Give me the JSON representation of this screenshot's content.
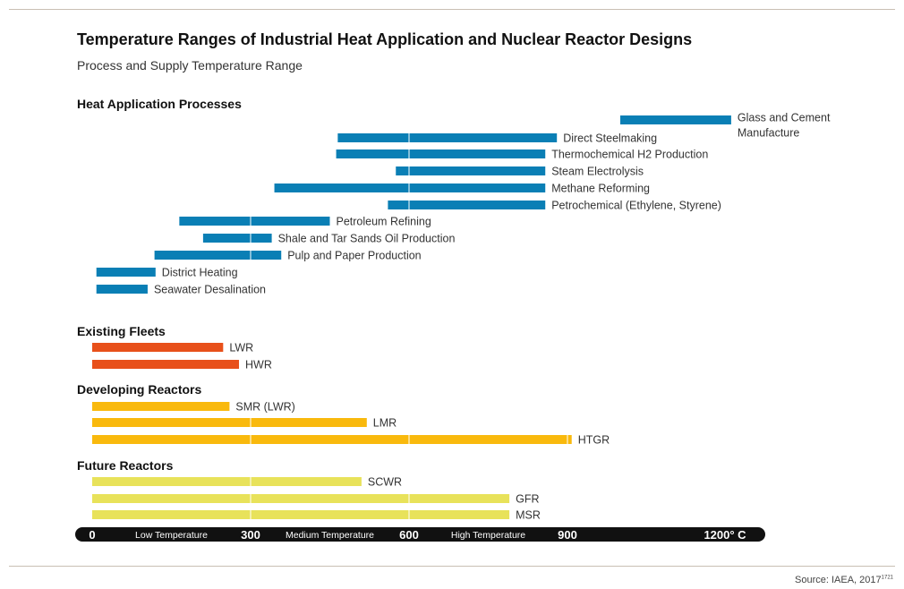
{
  "title": "Temperature Ranges of Industrial Heat Application and Nuclear Reactor Designs",
  "subtitle": "Process and Supply Temperature Range",
  "source": "Source: IAEA, 2017",
  "source_ref": "1721",
  "colors": {
    "heat": "#0a7fb5",
    "existing": "#e8501a",
    "developing": "#f9b90d",
    "future": "#e8e25a",
    "axis": "#111111",
    "divider": "#ffffff"
  },
  "chart_data": {
    "type": "bar",
    "orientation": "horizontal",
    "unit": "°C",
    "xlim": [
      0,
      1200
    ],
    "axis": {
      "ticks": [
        {
          "value": 0,
          "label": "0"
        },
        {
          "value": 300,
          "label": "300"
        },
        {
          "value": 600,
          "label": "600"
        },
        {
          "value": 900,
          "label": "900"
        }
      ],
      "end_label": "1200° C",
      "bands": [
        {
          "label": "Low Temperature",
          "start": 0,
          "end": 300
        },
        {
          "label": "Medium Temperature",
          "start": 300,
          "end": 600
        },
        {
          "label": "High Temperature",
          "start": 600,
          "end": 900
        }
      ]
    },
    "groups": [
      {
        "name": "Heat Application Processes",
        "color_key": "heat",
        "bars": [
          {
            "label": "Glass and Cement Manufacture",
            "label_lines": [
              "Glass and Cement",
              "Manufacture"
            ],
            "start": 1000,
            "end": 1210
          },
          {
            "label": "Direct Steelmaking",
            "start": 465,
            "end": 880
          },
          {
            "label": "Thermochemical H2 Production",
            "start": 462,
            "end": 858
          },
          {
            "label": "Steam Electrolysis",
            "start": 575,
            "end": 858
          },
          {
            "label": "Methane Reforming",
            "start": 345,
            "end": 858
          },
          {
            "label": "Petrochemical (Ethylene, Styrene)",
            "start": 560,
            "end": 858
          },
          {
            "label": "Petroleum Refining",
            "start": 165,
            "end": 450
          },
          {
            "label": "Shale and Tar Sands Oil Production",
            "start": 210,
            "end": 340
          },
          {
            "label": "Pulp and Paper Production",
            "start": 118,
            "end": 358
          },
          {
            "label": "District Heating",
            "start": 8,
            "end": 120
          },
          {
            "label": "Seawater Desalination",
            "start": 8,
            "end": 105
          }
        ]
      },
      {
        "name": "Existing Fleets",
        "color_key": "existing",
        "bars": [
          {
            "label": "LWR",
            "start": 0,
            "end": 248
          },
          {
            "label": "HWR",
            "start": 0,
            "end": 278
          }
        ]
      },
      {
        "name": "Developing Reactors",
        "color_key": "developing",
        "bars": [
          {
            "label": "SMR (LWR)",
            "start": 0,
            "end": 260
          },
          {
            "label": "LMR",
            "start": 0,
            "end": 520
          },
          {
            "label": "HTGR",
            "start": 0,
            "end": 908
          }
        ]
      },
      {
        "name": "Future Reactors",
        "color_key": "future",
        "bars": [
          {
            "label": "SCWR",
            "start": 0,
            "end": 510
          },
          {
            "label": "GFR",
            "start": 0,
            "end": 790
          },
          {
            "label": "MSR",
            "start": 0,
            "end": 790
          }
        ]
      }
    ]
  }
}
